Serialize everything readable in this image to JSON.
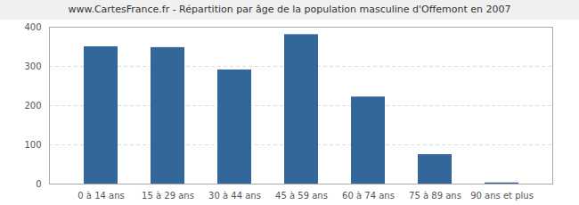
{
  "chart_data": {
    "type": "bar",
    "title": "www.CartesFrance.fr - Répartition par âge de la population masculine d'Offemont en 2007",
    "categories": [
      "0 à 14 ans",
      "15 à 29 ans",
      "30 à 44 ans",
      "45 à 59 ans",
      "60 à 74 ans",
      "75 à 89 ans",
      "90 ans et plus"
    ],
    "values": [
      350,
      348,
      291,
      381,
      222,
      75,
      3
    ],
    "color": "#336699",
    "ylim": [
      0,
      400
    ],
    "yticks": [
      0,
      100,
      200,
      300,
      400
    ],
    "grid": true
  }
}
